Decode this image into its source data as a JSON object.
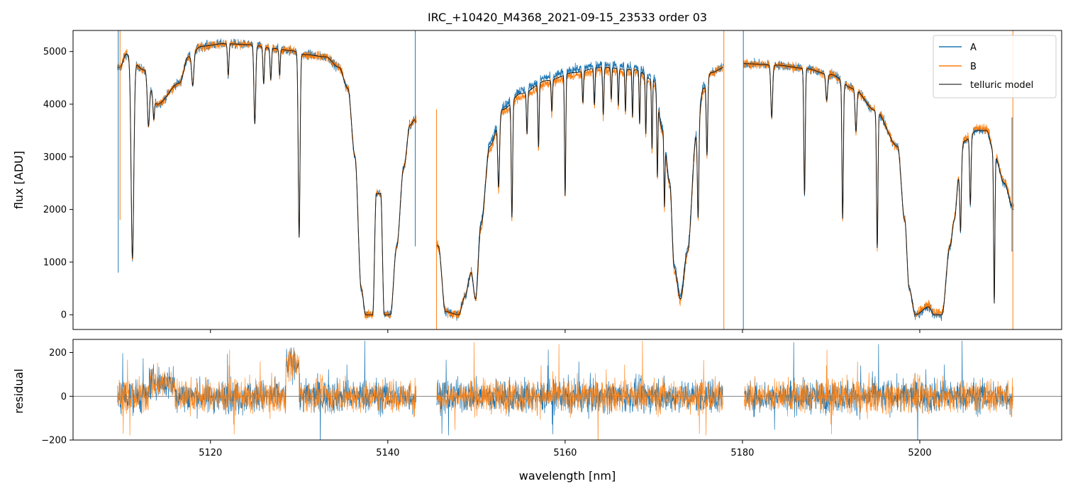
{
  "chart_data": [
    {
      "type": "line",
      "title": "IRC_+10420_M4368_2021-09-15_23533  order 03",
      "xlabel": "",
      "ylabel": "flux [ADU]",
      "xlim": [
        5104.5,
        5216
      ],
      "ylim": [
        -280,
        5400
      ],
      "yticks": [
        0,
        1000,
        2000,
        3000,
        4000,
        5000
      ],
      "xticks": [
        5120,
        5140,
        5160,
        5180,
        5200
      ],
      "xtick_labels_shown": false,
      "legend_position": "top-right",
      "colors": {
        "A": "#1f77b4",
        "B": "#ff7f0e",
        "telluric model": "#333333"
      },
      "series": [
        {
          "name": "A",
          "wave_range": [
            5109.5,
            5210.6
          ]
        },
        {
          "name": "B",
          "wave_range": [
            5109.5,
            5210.6
          ]
        },
        {
          "name": "telluric model"
        }
      ],
      "continuum_nodes": [
        [
          5109.8,
          4700
        ],
        [
          5110.5,
          4950
        ],
        [
          5112.5,
          4650
        ],
        [
          5114.0,
          4000
        ],
        [
          5116.5,
          4400
        ],
        [
          5117.5,
          4900
        ],
        [
          5119.0,
          5100
        ],
        [
          5121.5,
          5150
        ],
        [
          5124.5,
          5130
        ],
        [
          5127.0,
          5060
        ],
        [
          5129.0,
          5020
        ],
        [
          5130.8,
          4940
        ],
        [
          5133.0,
          4900
        ],
        [
          5134.5,
          4700
        ],
        [
          5135.5,
          4300
        ],
        [
          5136.3,
          3000
        ],
        [
          5137.0,
          500
        ],
        [
          5137.5,
          0
        ],
        [
          5138.3,
          0
        ],
        [
          5138.7,
          2300
        ],
        [
          5139.2,
          2300
        ],
        [
          5139.6,
          0
        ],
        [
          5140.3,
          0
        ],
        [
          5141.0,
          1300
        ],
        [
          5141.8,
          2800
        ],
        [
          5142.5,
          3600
        ],
        [
          5143.0,
          3700
        ],
        [
          5145.7,
          1300
        ],
        [
          5146.5,
          60
        ],
        [
          5148.0,
          0
        ],
        [
          5148.7,
          350
        ],
        [
          5149.4,
          800
        ],
        [
          5149.9,
          300
        ],
        [
          5150.5,
          1700
        ],
        [
          5151.5,
          3200
        ],
        [
          5153.0,
          3900
        ],
        [
          5155.0,
          4200
        ],
        [
          5158.0,
          4450
        ],
        [
          5161.0,
          4600
        ],
        [
          5164.0,
          4700
        ],
        [
          5168.0,
          4650
        ],
        [
          5170.0,
          4450
        ],
        [
          5171.0,
          3500
        ],
        [
          5171.8,
          2500
        ],
        [
          5172.3,
          900
        ],
        [
          5173.0,
          300
        ],
        [
          5173.8,
          1200
        ],
        [
          5174.8,
          3400
        ],
        [
          5175.6,
          4300
        ],
        [
          5176.5,
          4600
        ],
        [
          5178.0,
          4700
        ],
        [
          5180.2,
          4770
        ],
        [
          5184.0,
          4740
        ],
        [
          5187.0,
          4680
        ],
        [
          5190.0,
          4560
        ],
        [
          5192.5,
          4300
        ],
        [
          5195.0,
          3880
        ],
        [
          5197.5,
          3200
        ],
        [
          5198.3,
          1800
        ],
        [
          5198.8,
          500
        ],
        [
          5199.5,
          0
        ],
        [
          5201.0,
          150
        ],
        [
          5201.6,
          0
        ],
        [
          5202.5,
          0
        ],
        [
          5203.4,
          1300
        ],
        [
          5203.9,
          1800
        ],
        [
          5204.4,
          2600
        ],
        [
          5205.0,
          3300
        ],
        [
          5206.5,
          3500
        ],
        [
          5207.5,
          3500
        ],
        [
          5208.5,
          3000
        ],
        [
          5209.5,
          2500
        ],
        [
          5210.6,
          2000
        ]
      ],
      "absorption_lines": [
        [
          5111.2,
          3800,
          0.15
        ],
        [
          5113.0,
          900,
          0.12
        ],
        [
          5113.6,
          400,
          0.08
        ],
        [
          5118.0,
          600,
          0.12
        ],
        [
          5122.0,
          600,
          0.08
        ],
        [
          5125.0,
          1500,
          0.1
        ],
        [
          5126.0,
          700,
          0.08
        ],
        [
          5126.8,
          600,
          0.08
        ],
        [
          5127.8,
          500,
          0.07
        ],
        [
          5130.0,
          3500,
          0.1
        ],
        [
          5152.5,
          1300,
          0.1
        ],
        [
          5154.0,
          2200,
          0.08
        ],
        [
          5155.7,
          800,
          0.07
        ],
        [
          5157.0,
          1200,
          0.07
        ],
        [
          5158.5,
          600,
          0.07
        ],
        [
          5160.0,
          2300,
          0.07
        ],
        [
          5162.0,
          600,
          0.07
        ],
        [
          5163.3,
          700,
          0.07
        ],
        [
          5164.3,
          900,
          0.07
        ],
        [
          5165.2,
          600,
          0.06
        ],
        [
          5166.0,
          700,
          0.06
        ],
        [
          5166.8,
          800,
          0.06
        ],
        [
          5167.6,
          900,
          0.06
        ],
        [
          5168.4,
          1000,
          0.06
        ],
        [
          5169.1,
          1100,
          0.06
        ],
        [
          5169.8,
          1300,
          0.06
        ],
        [
          5170.4,
          1500,
          0.06
        ],
        [
          5171.2,
          1300,
          0.06
        ],
        [
          5175.0,
          1700,
          0.08
        ],
        [
          5176.0,
          1400,
          0.08
        ],
        [
          5183.3,
          1000,
          0.1
        ],
        [
          5187.0,
          2400,
          0.08
        ],
        [
          5189.5,
          500,
          0.1
        ],
        [
          5191.3,
          2600,
          0.08
        ],
        [
          5192.8,
          800,
          0.1
        ],
        [
          5195.2,
          2600,
          0.08
        ],
        [
          5204.6,
          1200,
          0.08
        ],
        [
          5205.7,
          1300,
          0.08
        ],
        [
          5208.4,
          2800,
          0.07
        ]
      ]
    },
    {
      "type": "line",
      "title": "",
      "xlabel": "wavelength [nm]",
      "ylabel": "residual",
      "xlim": [
        5104.5,
        5216
      ],
      "ylim": [
        -200,
        260
      ],
      "yticks": [
        -200,
        0,
        200
      ],
      "xticks": [
        5120,
        5140,
        5160,
        5180,
        5200
      ],
      "series": [
        {
          "name": "A",
          "segments": [
            [
              5109.5,
              5143.2
            ],
            [
              5145.5,
              5177.8
            ],
            [
              5180.2,
              5210.5
            ]
          ]
        },
        {
          "name": "B",
          "segments": [
            [
              5109.5,
              5143.2
            ],
            [
              5145.5,
              5177.8
            ],
            [
              5180.2,
              5210.5
            ]
          ]
        }
      ],
      "reference_line": 0
    }
  ]
}
